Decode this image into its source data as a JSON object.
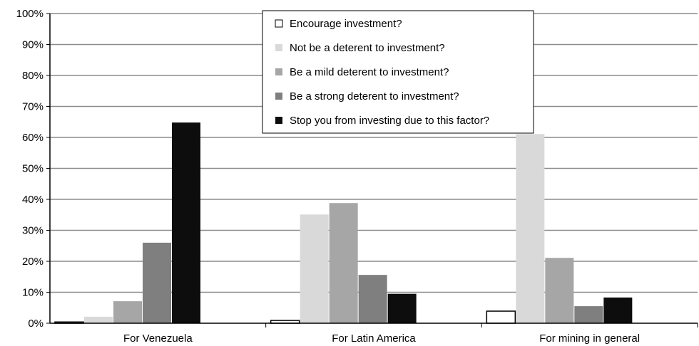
{
  "chart_data": {
    "type": "bar",
    "categories": [
      "For Venezuela",
      "For Latin America",
      "For mining in general"
    ],
    "ylim": [
      0,
      100
    ],
    "y_ticks": [
      "0%",
      "10%",
      "20%",
      "30%",
      "40%",
      "50%",
      "60%",
      "70%",
      "80%",
      "90%",
      "100%"
    ],
    "grid": true,
    "legend_position": "top-center",
    "series": [
      {
        "name": "Encourage investment?",
        "values": [
          0.4,
          0.9,
          3.9
        ],
        "color": "#ffffff"
      },
      {
        "name": "Not be a deterent to investment?",
        "values": [
          2.1,
          35.1,
          61.1
        ],
        "color": "#d9d9d9"
      },
      {
        "name": "Be a mild deterent to investment?",
        "values": [
          7.1,
          38.8,
          21.1
        ],
        "color": "#a6a6a6"
      },
      {
        "name": "Be a strong deterent to investment?",
        "values": [
          26.0,
          15.6,
          5.5
        ],
        "color": "#7f7f7f"
      },
      {
        "name": "Stop you from investing due to this factor?",
        "values": [
          64.8,
          9.5,
          8.3
        ],
        "color": "#0d0d0d"
      }
    ]
  }
}
